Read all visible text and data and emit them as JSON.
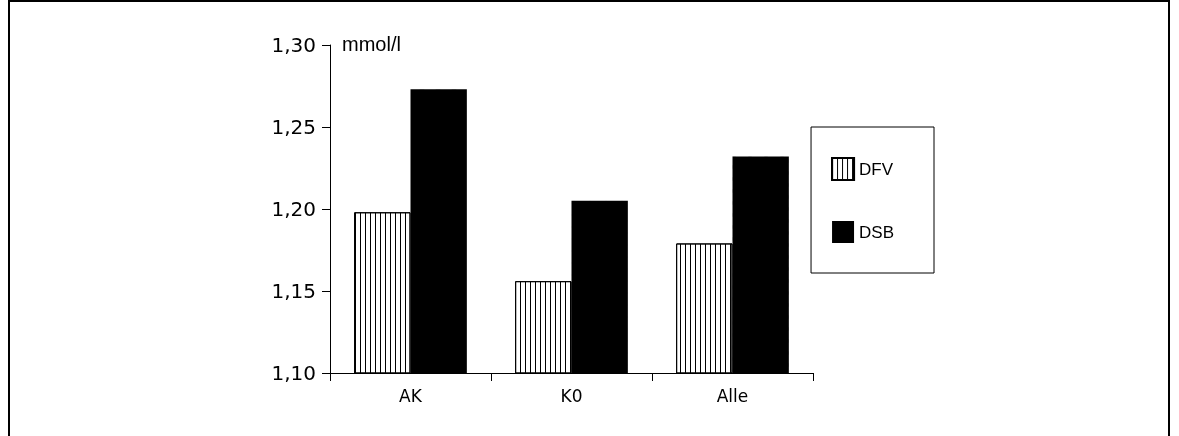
{
  "chart_data": {
    "type": "bar",
    "ylabel": "mmol/l",
    "categories": [
      "AK",
      "K0",
      "Alle"
    ],
    "series": [
      {
        "name": "DFV",
        "color": "#ffffff",
        "values": [
          1.198,
          1.156,
          1.179
        ]
      },
      {
        "name": "DSB",
        "color": "#000000",
        "values": [
          1.273,
          1.205,
          1.232
        ]
      }
    ],
    "ylim": [
      1.1,
      1.3
    ],
    "yticks": [
      {
        "value": 1.1,
        "label": "1,10"
      },
      {
        "value": 1.15,
        "label": "1,15"
      },
      {
        "value": 1.2,
        "label": "1,20"
      },
      {
        "value": 1.25,
        "label": "1,25"
      },
      {
        "value": 1.3,
        "label": "1,30"
      }
    ],
    "grid": false,
    "legend": "right"
  }
}
